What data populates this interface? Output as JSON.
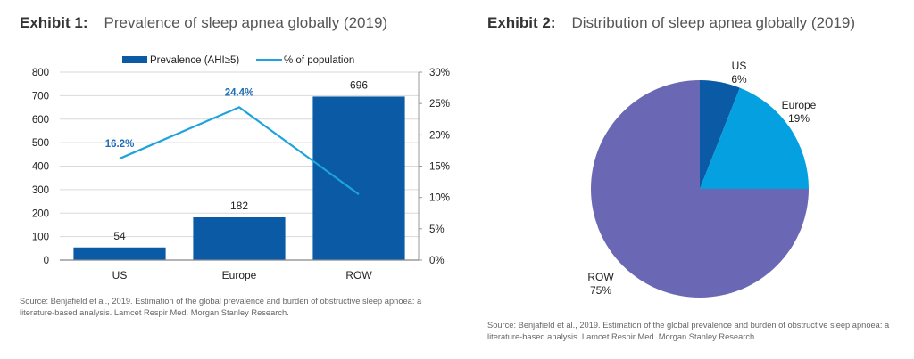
{
  "exhibit1": {
    "number": "Exhibit 1:",
    "title": "Prevalence of sleep apnea globally (2019)",
    "source": "Source: Benjafield et al., 2019. Estimation of the global prevalence and burden of obstructive sleep apnoea: a literature-based analysis. Lamcet Respir Med. Morgan Stanley Research."
  },
  "exhibit2": {
    "number": "Exhibit 2:",
    "title": "Distribution of sleep apnea globally (2019)",
    "source": "Source: Benjafield et al., 2019. Estimation of the global prevalence and burden of obstructive sleep apnoea: a literature-based analysis. Lamcet Respir Med. Morgan Stanley Research."
  },
  "chart_data": [
    {
      "type": "bar",
      "title": "Prevalence of sleep apnea globally (2019)",
      "categories": [
        "US",
        "Europe",
        "ROW"
      ],
      "series": [
        {
          "name": "Prevalence (AHI≥5)",
          "type": "bar",
          "axis": "left",
          "values": [
            54,
            182,
            696
          ],
          "labels": [
            "54",
            "182",
            "696"
          ],
          "color": "#0a5aa6"
        },
        {
          "name": "% of population",
          "type": "line",
          "axis": "right",
          "values": [
            16.2,
            24.4,
            10.5
          ],
          "labels": [
            "16.2%",
            "24.4%",
            ""
          ],
          "color": "#1ea3dc"
        }
      ],
      "ylim": [
        0,
        800
      ],
      "yticks": [
        0,
        100,
        200,
        300,
        400,
        500,
        600,
        700,
        800
      ],
      "y2lim": [
        0,
        30
      ],
      "y2ticks": [
        "0%",
        "5%",
        "10%",
        "15%",
        "20%",
        "25%",
        "30%"
      ],
      "y2tick_values": [
        0,
        5,
        10,
        15,
        20,
        25,
        30
      ],
      "xlabel": "",
      "ylabel": "",
      "y2label": "",
      "grid": true,
      "legend": "top-center",
      "label_color_line": "#1f6db5"
    },
    {
      "type": "pie",
      "title": "Distribution of sleep apnea globally (2019)",
      "categories": [
        "US",
        "Europe",
        "ROW"
      ],
      "values": [
        6,
        19,
        75
      ],
      "labels": [
        "6%",
        "19%",
        "75%"
      ],
      "colors": [
        "#0a5aa6",
        "#05a0df",
        "#6a68b4"
      ],
      "start": "12 o'clock",
      "direction": "clockwise"
    }
  ]
}
